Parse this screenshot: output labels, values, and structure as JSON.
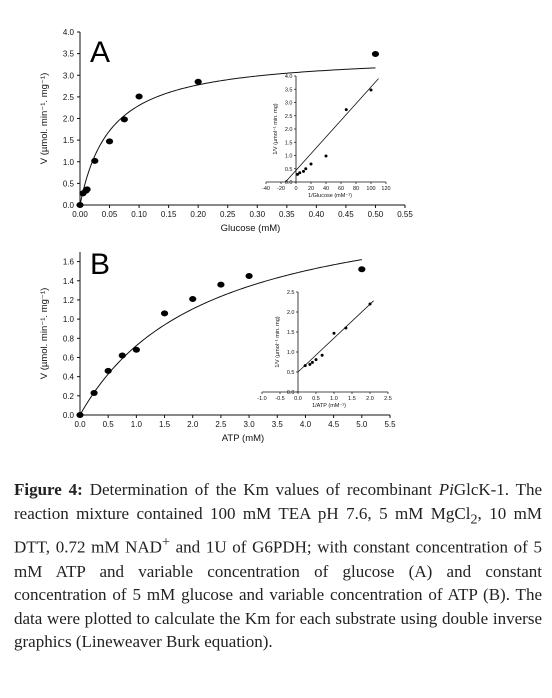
{
  "chart_data": [
    {
      "type": "scatter",
      "panel_letter": "A",
      "xlabel": "Glucose (mM)",
      "ylabel": "V (µmol. min⁻¹. mg⁻¹)",
      "xlim": [
        0,
        0.55
      ],
      "ylim": [
        0,
        4.0
      ],
      "xticks": [
        "0.00",
        "0.05",
        "0.10",
        "0.15",
        "0.20",
        "0.25",
        "0.30",
        "0.35",
        "0.40",
        "0.45",
        "0.50",
        "0.55"
      ],
      "yticks": [
        "0.0",
        "0.5",
        "1.0",
        "1.5",
        "2.0",
        "2.5",
        "3.0",
        "3.5",
        "4.0"
      ],
      "points": [
        [
          0.0,
          0.0
        ],
        [
          0.005,
          0.27
        ],
        [
          0.01,
          0.33
        ],
        [
          0.012,
          0.36
        ],
        [
          0.025,
          1.02
        ],
        [
          0.05,
          1.47
        ],
        [
          0.075,
          1.98
        ],
        [
          0.1,
          2.51
        ],
        [
          0.2,
          2.85
        ],
        [
          0.5,
          3.49
        ]
      ],
      "fit": {
        "vmax": 3.5,
        "km": 0.052
      },
      "inset": {
        "xlabel": "1/Glucose (mM⁻¹)",
        "ylabel": "1/V (µmol⁻¹ min. mg)",
        "xlim": [
          -40,
          120
        ],
        "ylim": [
          0,
          4.0
        ],
        "xticks": [
          "-40",
          "-20",
          "0",
          "20",
          "40",
          "60",
          "80",
          "100",
          "120"
        ],
        "yticks": [
          "0.0",
          "0.5",
          "1.0",
          "1.5",
          "2.0",
          "2.5",
          "3.0",
          "3.5",
          "4.0"
        ],
        "points": [
          [
            2,
            0.29
          ],
          [
            5,
            0.35
          ],
          [
            10,
            0.4
          ],
          [
            13,
            0.5
          ],
          [
            20,
            0.68
          ],
          [
            40,
            0.98
          ],
          [
            67,
            2.73
          ],
          [
            100,
            3.47
          ]
        ],
        "line": [
          [
            -14,
            0
          ],
          [
            110,
            3.9
          ]
        ]
      }
    },
    {
      "type": "scatter",
      "panel_letter": "B",
      "xlabel": "ATP (mM)",
      "ylabel": "V (µmol. min⁻¹. mg⁻¹)",
      "xlim": [
        0,
        5.5
      ],
      "ylim": [
        0,
        1.7
      ],
      "xticks": [
        "0.0",
        "0.5",
        "1.0",
        "1.5",
        "2.0",
        "2.5",
        "3.0",
        "3.5",
        "4.0",
        "4.5",
        "5.0",
        "5.5"
      ],
      "yticks": [
        "0.0",
        "0.2",
        "0.4",
        "0.6",
        "0.8",
        "1.0",
        "1.2",
        "1.4",
        "1.6"
      ],
      "points": [
        [
          0.0,
          0.0
        ],
        [
          0.25,
          0.23
        ],
        [
          0.5,
          0.46
        ],
        [
          0.75,
          0.62
        ],
        [
          1.0,
          0.68
        ],
        [
          1.5,
          1.06
        ],
        [
          2.0,
          1.21
        ],
        [
          2.5,
          1.36
        ],
        [
          3.0,
          1.45
        ],
        [
          5.0,
          1.52
        ]
      ],
      "fit": {
        "vmax": 2.35,
        "km": 2.25
      },
      "inset": {
        "xlabel": "1/ATP (mM⁻¹)",
        "ylabel": "1/V (µmol⁻¹ min. mg)",
        "xlim": [
          -1.0,
          2.5
        ],
        "ylim": [
          0,
          2.5
        ],
        "xticks": [
          "-1.0",
          "-0.5",
          "0.0",
          "0.5",
          "1.0",
          "1.5",
          "2.0",
          "2.5"
        ],
        "yticks": [
          "0.0",
          "0.5",
          "1.0",
          "1.5",
          "2.0",
          "2.5"
        ],
        "points": [
          [
            0.2,
            0.66
          ],
          [
            0.33,
            0.69
          ],
          [
            0.4,
            0.74
          ],
          [
            0.5,
            0.81
          ],
          [
            0.67,
            0.92
          ],
          [
            1.0,
            1.47
          ],
          [
            1.33,
            1.6
          ],
          [
            2.0,
            2.2
          ]
        ],
        "line": [
          [
            0,
            0.5
          ],
          [
            2.1,
            2.28
          ]
        ]
      }
    }
  ],
  "caption": {
    "label": "Figure 4:",
    "text_before_italic": "Determination of the Km values of recombinant",
    "italic": "Pi",
    "text_after_italic": "GlcK-1. The reaction mixture contained 100 mM TEA pH 7.6, 5 mM MgCl",
    "sub": "2",
    "text_mid": ", 10 mM DTT, 0.72 mM NAD",
    "sup": "+",
    "text_end": " and 1U of G6PDH; with constant concentration of 5 mM ATP and variable concentration of glucose (A) and constant concentration of 5 mM glucose and variable concentration of ATP (B). The data were plotted to calculate the Km for each substrate using double inverse graphics (Lineweaver Burk equation)."
  }
}
